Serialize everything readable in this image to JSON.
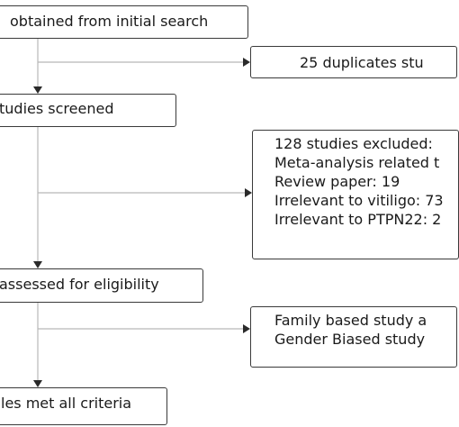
{
  "identified": {
    "text": "obtained from initial search"
  },
  "duplicates": {
    "text": "25 duplicates stu"
  },
  "screened": {
    "text": "tudies screened"
  },
  "excluded": {
    "lines": [
      "128 studies excluded:",
      "Meta-analysis related t",
      "Review paper: 19",
      "Irrelevant to vitiligo: 73",
      "Irrelevant to PTPN22: 2"
    ]
  },
  "eligibility": {
    "text": "assessed for eligibility"
  },
  "family": {
    "lines": [
      "Family based study a",
      "Gender Biased study"
    ]
  },
  "met": {
    "text": "les met all criteria"
  },
  "colors": {
    "line": "#b8b8b8",
    "arrow": "#2a2a2a",
    "border": "#3a3a3a"
  }
}
